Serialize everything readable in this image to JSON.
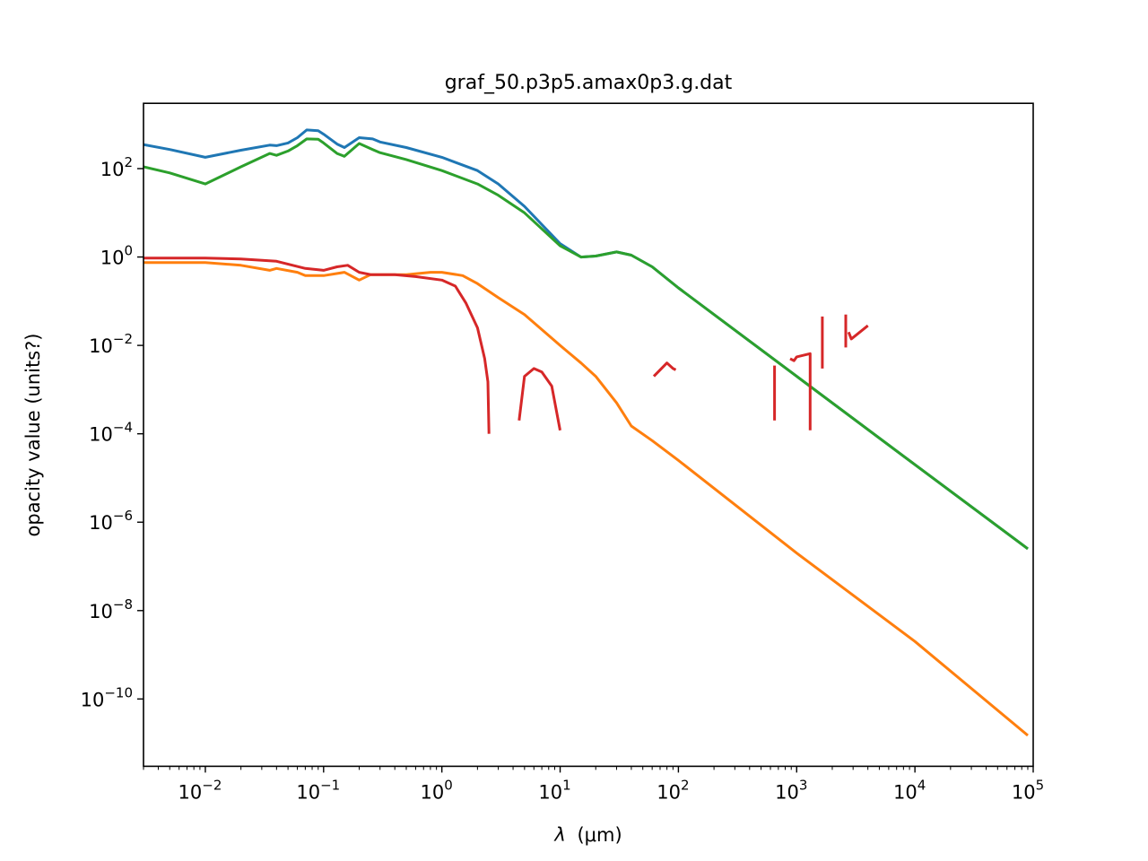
{
  "chart_data": {
    "type": "line",
    "title": "graf_50.p3p5.amax0p3.g.dat",
    "xlabel_symbol": "λ",
    "xlabel_unit": "(μm)",
    "ylabel": "opacity value (units?)",
    "xscale": "log",
    "yscale": "log",
    "xlim": [
      0.003,
      100000
    ],
    "ylim": [
      3e-12,
      3000
    ],
    "grid": false,
    "x_ticks": [
      {
        "base": "10",
        "exp": "−2",
        "value": 0.01
      },
      {
        "base": "10",
        "exp": "−1",
        "value": 0.1
      },
      {
        "base": "10",
        "exp": "0",
        "value": 1
      },
      {
        "base": "10",
        "exp": "1",
        "value": 10
      },
      {
        "base": "10",
        "exp": "2",
        "value": 100
      },
      {
        "base": "10",
        "exp": "3",
        "value": 1000
      },
      {
        "base": "10",
        "exp": "4",
        "value": 10000
      },
      {
        "base": "10",
        "exp": "5",
        "value": 100000
      }
    ],
    "y_ticks": [
      {
        "base": "10",
        "exp": "2",
        "value": 100
      },
      {
        "base": "10",
        "exp": "0",
        "value": 1
      },
      {
        "base": "10",
        "exp": "−2",
        "value": 0.01
      },
      {
        "base": "10",
        "exp": "−4",
        "value": 0.0001
      },
      {
        "base": "10",
        "exp": "−6",
        "value": 1e-06
      },
      {
        "base": "10",
        "exp": "−8",
        "value": 1e-08
      },
      {
        "base": "10",
        "exp": "−10",
        "value": 1e-10
      }
    ],
    "series": [
      {
        "color": "#1f77b4",
        "segments": [
          [
            [
              0.003,
              350
            ],
            [
              0.005,
              270
            ],
            [
              0.01,
              180
            ],
            [
              0.02,
              260
            ],
            [
              0.035,
              340
            ],
            [
              0.04,
              330
            ],
            [
              0.05,
              380
            ],
            [
              0.06,
              500
            ],
            [
              0.072,
              750
            ],
            [
              0.09,
              720
            ],
            [
              0.1,
              600
            ],
            [
              0.13,
              360
            ],
            [
              0.15,
              300
            ],
            [
              0.2,
              500
            ],
            [
              0.26,
              470
            ],
            [
              0.3,
              400
            ],
            [
              0.5,
              300
            ],
            [
              1,
              180
            ],
            [
              2,
              90
            ],
            [
              3,
              45
            ],
            [
              5,
              14
            ],
            [
              10,
              2
            ],
            [
              15,
              1
            ],
            [
              20,
              1.05
            ],
            [
              30,
              1.3
            ],
            [
              40,
              1.1
            ],
            [
              60,
              0.6
            ],
            [
              100,
              0.2
            ],
            [
              1000,
              0.002
            ],
            [
              10000,
              2e-05
            ],
            [
              90000,
              2.5e-07
            ]
          ]
        ]
      },
      {
        "color": "#ff7f0e",
        "segments": [
          [
            [
              0.003,
              0.75
            ],
            [
              0.01,
              0.75
            ],
            [
              0.02,
              0.65
            ],
            [
              0.035,
              0.5
            ],
            [
              0.04,
              0.55
            ],
            [
              0.06,
              0.45
            ],
            [
              0.07,
              0.38
            ],
            [
              0.1,
              0.38
            ],
            [
              0.15,
              0.45
            ],
            [
              0.2,
              0.3
            ],
            [
              0.25,
              0.4
            ],
            [
              0.3,
              0.4
            ],
            [
              0.5,
              0.4
            ],
            [
              0.8,
              0.45
            ],
            [
              1,
              0.45
            ],
            [
              1.5,
              0.38
            ],
            [
              2,
              0.25
            ],
            [
              3,
              0.12
            ],
            [
              5,
              0.05
            ],
            [
              10,
              0.01
            ],
            [
              15,
              0.004
            ],
            [
              20,
              0.002
            ],
            [
              30,
              0.0005
            ],
            [
              40,
              0.00015
            ],
            [
              60,
              7e-05
            ],
            [
              100,
              2.5e-05
            ],
            [
              1000,
              2e-07
            ],
            [
              10000,
              2e-09
            ],
            [
              90000,
              1.5e-11
            ]
          ]
        ]
      },
      {
        "color": "#2ca02c",
        "segments": [
          [
            [
              0.003,
              110
            ],
            [
              0.005,
              80
            ],
            [
              0.01,
              45
            ],
            [
              0.02,
              110
            ],
            [
              0.035,
              220
            ],
            [
              0.04,
              200
            ],
            [
              0.05,
              250
            ],
            [
              0.06,
              330
            ],
            [
              0.072,
              470
            ],
            [
              0.09,
              460
            ],
            [
              0.1,
              380
            ],
            [
              0.13,
              220
            ],
            [
              0.15,
              190
            ],
            [
              0.2,
              370
            ],
            [
              0.26,
              270
            ],
            [
              0.3,
              230
            ],
            [
              0.5,
              160
            ],
            [
              1,
              90
            ],
            [
              2,
              45
            ],
            [
              3,
              25
            ],
            [
              5,
              10
            ],
            [
              10,
              1.8
            ],
            [
              15,
              1
            ],
            [
              20,
              1.05
            ],
            [
              30,
              1.3
            ],
            [
              40,
              1.1
            ],
            [
              60,
              0.6
            ],
            [
              100,
              0.2
            ],
            [
              1000,
              0.002
            ],
            [
              10000,
              2e-05
            ],
            [
              90000,
              2.5e-07
            ]
          ]
        ]
      },
      {
        "color": "#d62728",
        "segments": [
          [
            [
              0.003,
              0.95
            ],
            [
              0.01,
              0.95
            ],
            [
              0.02,
              0.9
            ],
            [
              0.04,
              0.8
            ],
            [
              0.07,
              0.55
            ],
            [
              0.1,
              0.5
            ],
            [
              0.13,
              0.6
            ],
            [
              0.16,
              0.65
            ],
            [
              0.2,
              0.45
            ],
            [
              0.25,
              0.4
            ],
            [
              0.4,
              0.4
            ],
            [
              0.6,
              0.36
            ],
            [
              1,
              0.3
            ],
            [
              1.3,
              0.22
            ],
            [
              1.6,
              0.09
            ],
            [
              2,
              0.025
            ],
            [
              2.3,
              0.005
            ],
            [
              2.45,
              0.0015
            ],
            [
              2.5,
              0.0001
            ]
          ],
          [
            [
              4.5,
              0.0002
            ],
            [
              5,
              0.002
            ],
            [
              6,
              0.003
            ],
            [
              7,
              0.0025
            ],
            [
              8.5,
              0.0012
            ],
            [
              10,
              0.00012
            ]
          ],
          [
            [
              62,
              0.002
            ],
            [
              80,
              0.004
            ],
            [
              90,
              0.003
            ],
            [
              95,
              0.0028
            ]
          ],
          [
            [
              650,
              0.0002
            ],
            [
              650,
              0.0035
            ]
          ],
          [
            [
              880,
              0.005
            ],
            [
              950,
              0.0045
            ],
            [
              1000,
              0.0055
            ],
            [
              1300,
              0.0065
            ],
            [
              1300,
              0.00012
            ]
          ],
          [
            [
              1650,
              0.003
            ],
            [
              1650,
              0.045
            ]
          ],
          [
            [
              2600,
              0.009
            ],
            [
              2600,
              0.05
            ]
          ],
          [
            [
              2750,
              0.02
            ],
            [
              2900,
              0.014
            ],
            [
              4000,
              0.028
            ]
          ]
        ]
      }
    ]
  }
}
